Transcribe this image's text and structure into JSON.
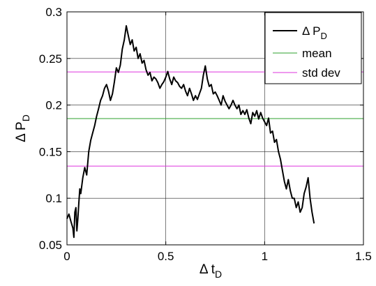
{
  "chart_data": {
    "type": "line",
    "xlabel": "Δ t",
    "xlabel_sub": "D",
    "ylabel": "Δ P",
    "ylabel_sub": "D",
    "xlim": [
      0,
      1.5
    ],
    "ylim": [
      0.05,
      0.3
    ],
    "xticks": [
      0,
      0.5,
      1,
      1.5
    ],
    "xtick_labels": [
      "0",
      "0.5",
      "1",
      "1.5"
    ],
    "yticks": [
      0.05,
      0.1,
      0.15,
      0.2,
      0.25,
      0.3
    ],
    "ytick_labels": [
      "0.05",
      "0.1",
      "0.15",
      "0.2",
      "0.25",
      "0.3"
    ],
    "grid": true,
    "legend_position": "top-right",
    "series": [
      {
        "name": "Δ P",
        "name_sub": "D",
        "color": "#000000",
        "x": [
          0,
          0.01,
          0.02,
          0.03,
          0.035,
          0.04,
          0.045,
          0.05,
          0.055,
          0.06,
          0.065,
          0.07,
          0.08,
          0.09,
          0.1,
          0.11,
          0.12,
          0.13,
          0.14,
          0.15,
          0.16,
          0.17,
          0.18,
          0.19,
          0.2,
          0.21,
          0.22,
          0.23,
          0.24,
          0.25,
          0.26,
          0.27,
          0.28,
          0.29,
          0.3,
          0.31,
          0.32,
          0.33,
          0.34,
          0.35,
          0.36,
          0.37,
          0.38,
          0.39,
          0.4,
          0.41,
          0.42,
          0.43,
          0.44,
          0.45,
          0.46,
          0.47,
          0.48,
          0.49,
          0.5,
          0.51,
          0.52,
          0.53,
          0.54,
          0.55,
          0.56,
          0.57,
          0.58,
          0.59,
          0.6,
          0.61,
          0.62,
          0.63,
          0.64,
          0.65,
          0.66,
          0.67,
          0.68,
          0.69,
          0.7,
          0.71,
          0.72,
          0.73,
          0.74,
          0.75,
          0.76,
          0.77,
          0.78,
          0.79,
          0.8,
          0.81,
          0.82,
          0.83,
          0.84,
          0.85,
          0.86,
          0.87,
          0.88,
          0.89,
          0.9,
          0.91,
          0.92,
          0.93,
          0.94,
          0.95,
          0.96,
          0.97,
          0.98,
          0.99,
          1.0,
          1.01,
          1.02,
          1.03,
          1.04,
          1.05,
          1.06,
          1.07,
          1.08,
          1.09,
          1.1,
          1.11,
          1.12,
          1.13,
          1.14,
          1.15,
          1.16,
          1.17,
          1.18,
          1.19,
          1.2,
          1.21,
          1.22,
          1.23,
          1.24,
          1.25
        ],
        "y": [
          0.078,
          0.083,
          0.075,
          0.068,
          0.058,
          0.085,
          0.09,
          0.065,
          0.078,
          0.095,
          0.11,
          0.105,
          0.122,
          0.133,
          0.125,
          0.15,
          0.162,
          0.17,
          0.178,
          0.188,
          0.196,
          0.205,
          0.21,
          0.218,
          0.222,
          0.215,
          0.205,
          0.212,
          0.225,
          0.24,
          0.235,
          0.243,
          0.26,
          0.27,
          0.285,
          0.275,
          0.265,
          0.27,
          0.258,
          0.262,
          0.25,
          0.255,
          0.245,
          0.248,
          0.238,
          0.232,
          0.235,
          0.226,
          0.23,
          0.228,
          0.224,
          0.218,
          0.222,
          0.225,
          0.23,
          0.236,
          0.228,
          0.222,
          0.23,
          0.226,
          0.224,
          0.22,
          0.218,
          0.222,
          0.215,
          0.21,
          0.218,
          0.212,
          0.205,
          0.21,
          0.206,
          0.212,
          0.218,
          0.232,
          0.242,
          0.228,
          0.22,
          0.222,
          0.212,
          0.214,
          0.21,
          0.205,
          0.2,
          0.21,
          0.204,
          0.2,
          0.196,
          0.2,
          0.205,
          0.2,
          0.196,
          0.2,
          0.19,
          0.194,
          0.19,
          0.195,
          0.186,
          0.18,
          0.192,
          0.188,
          0.194,
          0.185,
          0.192,
          0.186,
          0.182,
          0.178,
          0.186,
          0.17,
          0.172,
          0.16,
          0.163,
          0.15,
          0.142,
          0.13,
          0.118,
          0.11,
          0.12,
          0.108,
          0.1,
          0.1,
          0.09,
          0.096,
          0.085,
          0.09,
          0.105,
          0.112,
          0.122,
          0.1,
          0.085,
          0.073
        ]
      },
      {
        "name": "mean",
        "color": "#2ca02c",
        "y_constant": 0.1855
      },
      {
        "name": "std dev",
        "color": "#dd33dd",
        "y_constant": [
          0.2355,
          0.1345
        ]
      }
    ]
  }
}
